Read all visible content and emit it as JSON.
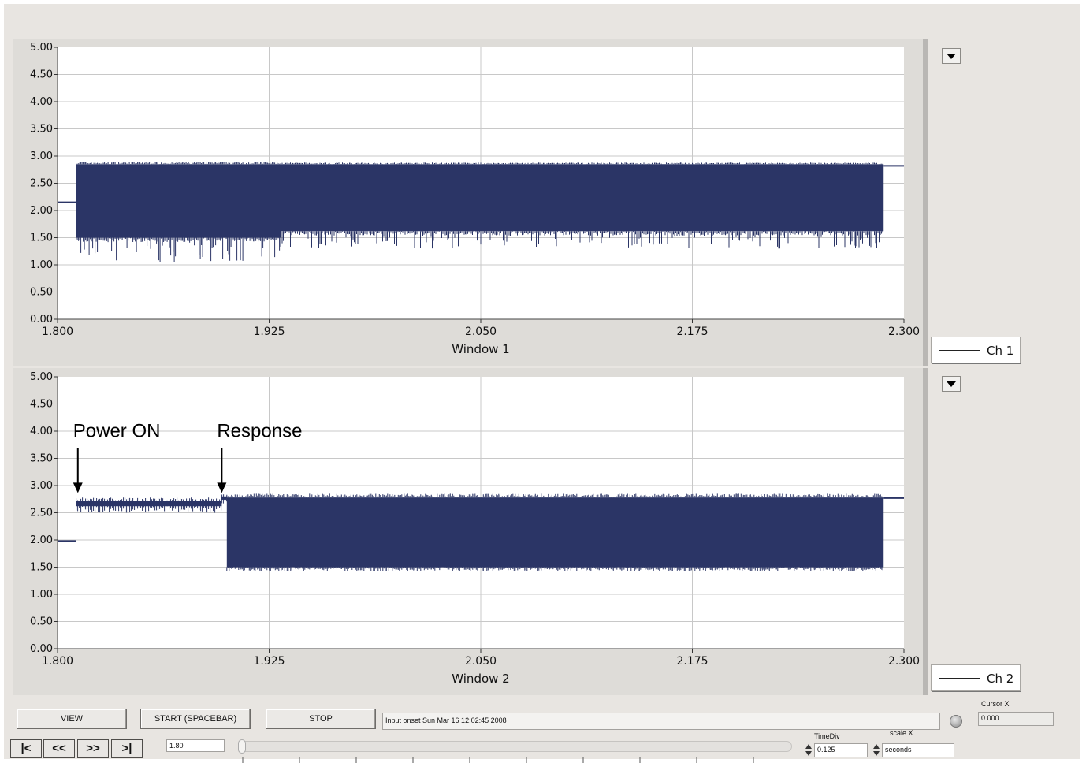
{
  "chart_data": [
    {
      "type": "line",
      "xlabel": "Window 1",
      "xlim": [
        1.8,
        2.3
      ],
      "ylim": [
        0.0,
        5.0
      ],
      "grid": true,
      "x_ticks": [
        "1.800",
        "1.925",
        "2.050",
        "2.175",
        "2.300"
      ],
      "y_ticks": [
        "0.00",
        "0.50",
        "1.00",
        "1.50",
        "2.00",
        "2.50",
        "3.00",
        "3.50",
        "4.00",
        "4.50",
        "5.00"
      ],
      "legend": [
        "Ch 1"
      ],
      "color": "#2b3566",
      "series": [
        {
          "name": "Ch 1",
          "segments": [
            {
              "x_start": 1.8,
              "x_end": 1.811,
              "kind": "flat",
              "y": 2.15
            },
            {
              "x_start": 1.811,
              "x_end": 1.932,
              "kind": "band",
              "y_low": 1.5,
              "y_high": 2.85,
              "dip_min": 1.05,
              "spike_max": 2.9
            },
            {
              "x_start": 1.932,
              "x_end": 2.288,
              "kind": "band",
              "y_low": 1.62,
              "y_high": 2.85,
              "dip_min": 1.3,
              "spike_max": 2.88
            },
            {
              "x_start": 2.288,
              "x_end": 2.3,
              "kind": "flat",
              "y": 2.82
            }
          ]
        }
      ]
    },
    {
      "type": "line",
      "xlabel": "Window 2",
      "xlim": [
        1.8,
        2.3
      ],
      "ylim": [
        0.0,
        5.0
      ],
      "grid": true,
      "x_ticks": [
        "1.800",
        "1.925",
        "2.050",
        "2.175",
        "2.300"
      ],
      "y_ticks": [
        "0.00",
        "0.50",
        "1.00",
        "1.50",
        "2.00",
        "2.50",
        "3.00",
        "3.50",
        "4.00",
        "4.50",
        "5.00"
      ],
      "legend": [
        "Ch 2"
      ],
      "color": "#2b3566",
      "annotations": [
        {
          "text": "Power ON",
          "x": 1.812,
          "y": 2.85
        },
        {
          "text": "Response",
          "x": 1.897,
          "y": 2.85
        }
      ],
      "series": [
        {
          "name": "Ch 2",
          "segments": [
            {
              "x_start": 1.8,
              "x_end": 1.811,
              "kind": "flat",
              "y": 1.98
            },
            {
              "x_start": 1.811,
              "x_end": 1.897,
              "kind": "thin",
              "y_low": 2.62,
              "y_high": 2.72
            },
            {
              "x_start": 1.897,
              "x_end": 1.9,
              "kind": "thin",
              "y_low": 2.74,
              "y_high": 2.8
            },
            {
              "x_start": 1.9,
              "x_end": 2.288,
              "kind": "band",
              "y_low": 1.5,
              "y_high": 2.78,
              "dip_min": 1.45,
              "spike_max": 2.85
            },
            {
              "x_start": 2.288,
              "x_end": 2.3,
              "kind": "flat",
              "y": 2.77
            }
          ]
        }
      ]
    }
  ],
  "controls": {
    "view_label": "VIEW",
    "start_label": "START (SPACEBAR)",
    "stop_label": "STOP",
    "status_text": "Input onset Sun Mar 16 12:02:45 2008",
    "cursor_x_label": "Cursor X",
    "cursor_x_value": "0.000",
    "nav_first": "|<",
    "nav_prev": "<<",
    "nav_next": ">>",
    "nav_last": ">|",
    "start_value": "1.80",
    "timediv_label": "TimeDiv",
    "timediv_value": "0.125",
    "scalex_label": "scale X",
    "scalex_value": "seconds"
  }
}
